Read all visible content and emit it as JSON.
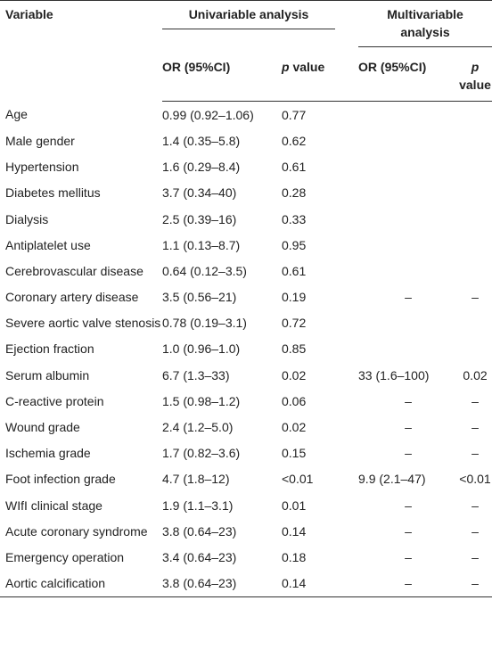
{
  "table": {
    "header": {
      "variable": "Variable",
      "univariable": "Univariable analysis",
      "multivariable": "Multivariable analysis"
    },
    "subheader": [
      "OR (95%CI)",
      "p value",
      "OR (95%CI)",
      "p value"
    ],
    "rows": [
      [
        "Age",
        "0.99 (0.92–1.06)",
        "0.77",
        null,
        null
      ],
      [
        "Male gender",
        "1.4 (0.35–5.8)",
        "0.62",
        null,
        null
      ],
      [
        "Hypertension",
        "1.6 (0.29–8.4)",
        "0.61",
        null,
        null
      ],
      [
        "Diabetes mellitus",
        "3.7 (0.34–40)",
        "0.28",
        null,
        null
      ],
      [
        "Dialysis",
        "2.5 (0.39–16)",
        "0.33",
        null,
        null
      ],
      [
        "Antiplatelet use",
        "1.1 (0.13–8.7)",
        "0.95",
        null,
        null
      ],
      [
        "Cerebrovascular disease",
        "0.64 (0.12–3.5)",
        "0.61",
        null,
        null
      ],
      [
        "Coronary artery disease",
        "3.5 (0.56–21)",
        "0.19",
        "–",
        "–"
      ],
      [
        "Severe aortic valve stenosis",
        "0.78 (0.19–3.1)",
        "0.72",
        null,
        null
      ],
      [
        "Ejection fraction",
        "1.0 (0.96–1.0)",
        "0.85",
        null,
        null
      ],
      [
        "Serum albumin",
        "6.7 (1.3–33)",
        "0.02",
        "33 (1.6–100)",
        "0.02"
      ],
      [
        "C-reactive protein",
        "1.5 (0.98–1.2)",
        "0.06",
        "–",
        "–"
      ],
      [
        "Wound grade",
        "2.4 (1.2–5.0)",
        "0.02",
        "–",
        "–"
      ],
      [
        "Ischemia grade",
        "1.7 (0.82–3.6)",
        "0.15",
        "–",
        "–"
      ],
      [
        "Foot infection grade",
        "4.7 (1.8–12)",
        "<0.01",
        "9.9 (2.1–47)",
        "<0.01"
      ],
      [
        "WIfI clinical stage",
        "1.9 (1.1–3.1)",
        "0.01",
        "–",
        "–"
      ],
      [
        "Acute coronary syndrome",
        "3.8 (0.64–23)",
        "0.14",
        "–",
        "–"
      ],
      [
        "Emergency operation",
        "3.4 (0.64–23)",
        "0.18",
        "–",
        "–"
      ],
      [
        "Aortic calcification",
        "3.8 (0.64–23)",
        "0.14",
        "–",
        "–"
      ]
    ]
  }
}
